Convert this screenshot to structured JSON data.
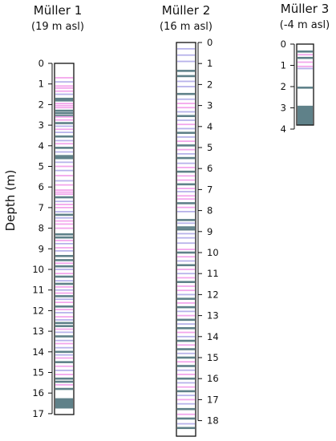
{
  "y_axis_label": "Depth (m)",
  "colors": {
    "dark": "#5f8189",
    "pink": "#f3a6ec",
    "blue": "#b7b2ea",
    "outline": "#111111"
  },
  "cores": [
    {
      "name": "Müller 1",
      "elevation": "(19 m asl)",
      "max_depth": 17,
      "tick_labels": [
        "0",
        "1",
        "2",
        "3",
        "4",
        "5",
        "6",
        "7",
        "8",
        "9",
        "10",
        "11",
        "12",
        "13",
        "14",
        "15",
        "16",
        "17"
      ],
      "layers": [
        {
          "d": 0.7,
          "t": "pink"
        },
        {
          "d": 0.9,
          "t": "blue"
        },
        {
          "d": 1.1,
          "t": "pink"
        },
        {
          "d": 1.2,
          "t": "pink"
        },
        {
          "d": 1.35,
          "t": "pink"
        },
        {
          "d": 1.5,
          "t": "blue"
        },
        {
          "d": 1.72,
          "t": "dark"
        },
        {
          "d": 1.8,
          "t": "dark"
        },
        {
          "d": 1.95,
          "t": "pink"
        },
        {
          "d": 2.05,
          "t": "pink"
        },
        {
          "d": 2.15,
          "t": "pink"
        },
        {
          "d": 2.3,
          "t": "dark"
        },
        {
          "d": 2.42,
          "t": "dark"
        },
        {
          "d": 2.55,
          "t": "dark"
        },
        {
          "d": 2.6,
          "t": "pink"
        },
        {
          "d": 2.75,
          "t": "pink"
        },
        {
          "d": 2.9,
          "t": "dark"
        },
        {
          "d": 3.05,
          "t": "blue"
        },
        {
          "d": 3.2,
          "t": "pink"
        },
        {
          "d": 3.35,
          "t": "blue"
        },
        {
          "d": 3.55,
          "t": "dark"
        },
        {
          "d": 3.75,
          "t": "blue"
        },
        {
          "d": 3.9,
          "t": "pink"
        },
        {
          "d": 4.1,
          "t": "dark"
        },
        {
          "d": 4.3,
          "t": "blue"
        },
        {
          "d": 4.5,
          "t": "dark"
        },
        {
          "d": 4.6,
          "t": "dark"
        },
        {
          "d": 4.8,
          "t": "blue"
        },
        {
          "d": 5.0,
          "t": "pink"
        },
        {
          "d": 5.2,
          "t": "blue"
        },
        {
          "d": 5.45,
          "t": "pink"
        },
        {
          "d": 5.7,
          "t": "blue"
        },
        {
          "d": 5.9,
          "t": "pink"
        },
        {
          "d": 6.15,
          "t": "pink"
        },
        {
          "d": 6.25,
          "t": "pink"
        },
        {
          "d": 6.35,
          "t": "pink"
        },
        {
          "d": 6.5,
          "t": "dark"
        },
        {
          "d": 6.7,
          "t": "blue"
        },
        {
          "d": 6.85,
          "t": "pink"
        },
        {
          "d": 7.0,
          "t": "pink"
        },
        {
          "d": 7.2,
          "t": "blue"
        },
        {
          "d": 7.35,
          "t": "dark"
        },
        {
          "d": 7.5,
          "t": "blue"
        },
        {
          "d": 7.65,
          "t": "pink"
        },
        {
          "d": 7.8,
          "t": "pink"
        },
        {
          "d": 8.0,
          "t": "pink"
        },
        {
          "d": 8.3,
          "t": "dark"
        },
        {
          "d": 8.45,
          "t": "dark"
        },
        {
          "d": 8.6,
          "t": "pink"
        },
        {
          "d": 8.75,
          "t": "blue"
        },
        {
          "d": 8.95,
          "t": "pink"
        },
        {
          "d": 9.1,
          "t": "blue"
        },
        {
          "d": 9.35,
          "t": "dark"
        },
        {
          "d": 9.55,
          "t": "dark"
        },
        {
          "d": 9.7,
          "t": "pink"
        },
        {
          "d": 9.85,
          "t": "dark"
        },
        {
          "d": 10.0,
          "t": "blue"
        },
        {
          "d": 10.2,
          "t": "pink"
        },
        {
          "d": 10.35,
          "t": "dark"
        },
        {
          "d": 10.55,
          "t": "blue"
        },
        {
          "d": 10.7,
          "t": "dark"
        },
        {
          "d": 10.85,
          "t": "pink"
        },
        {
          "d": 11.0,
          "t": "blue"
        },
        {
          "d": 11.15,
          "t": "pink"
        },
        {
          "d": 11.3,
          "t": "dark"
        },
        {
          "d": 11.45,
          "t": "blue"
        },
        {
          "d": 11.6,
          "t": "pink"
        },
        {
          "d": 11.8,
          "t": "dark"
        },
        {
          "d": 11.95,
          "t": "pink"
        },
        {
          "d": 12.1,
          "t": "blue"
        },
        {
          "d": 12.3,
          "t": "pink"
        },
        {
          "d": 12.45,
          "t": "blue"
        },
        {
          "d": 12.6,
          "t": "dark"
        },
        {
          "d": 12.75,
          "t": "dark"
        },
        {
          "d": 12.9,
          "t": "pink"
        },
        {
          "d": 13.05,
          "t": "blue"
        },
        {
          "d": 13.25,
          "t": "dark"
        },
        {
          "d": 13.45,
          "t": "blue"
        },
        {
          "d": 13.6,
          "t": "pink"
        },
        {
          "d": 13.8,
          "t": "blue"
        },
        {
          "d": 14.0,
          "t": "dark"
        },
        {
          "d": 14.15,
          "t": "blue"
        },
        {
          "d": 14.3,
          "t": "pink"
        },
        {
          "d": 14.5,
          "t": "dark"
        },
        {
          "d": 14.7,
          "t": "pink"
        },
        {
          "d": 14.9,
          "t": "blue"
        },
        {
          "d": 15.1,
          "t": "pink"
        },
        {
          "d": 15.3,
          "t": "dark"
        },
        {
          "d": 15.45,
          "t": "dark"
        },
        {
          "d": 15.6,
          "t": "pink"
        },
        {
          "d": 15.8,
          "t": "dark"
        }
      ],
      "blocks": [
        {
          "from": 16.25,
          "to": 16.75,
          "t": "dark"
        }
      ]
    },
    {
      "name": "Müller 2",
      "elevation": "(16 m asl)",
      "max_depth": 18.5,
      "tick_labels": [
        "0",
        "1",
        "2",
        "3",
        "4",
        "5",
        "6",
        "7",
        "8",
        "9",
        "10",
        "11",
        "12",
        "13",
        "14",
        "15",
        "16",
        "17",
        "18"
      ],
      "layers": [
        {
          "d": 0.3,
          "t": "blue"
        },
        {
          "d": 0.6,
          "t": "blue"
        },
        {
          "d": 0.9,
          "t": "blue"
        },
        {
          "d": 1.35,
          "t": "dark"
        },
        {
          "d": 1.6,
          "t": "dark"
        },
        {
          "d": 1.85,
          "t": "blue"
        },
        {
          "d": 2.1,
          "t": "blue"
        },
        {
          "d": 2.45,
          "t": "dark"
        },
        {
          "d": 2.7,
          "t": "blue"
        },
        {
          "d": 2.9,
          "t": "pink"
        },
        {
          "d": 3.1,
          "t": "pink"
        },
        {
          "d": 3.3,
          "t": "blue"
        },
        {
          "d": 3.5,
          "t": "dark"
        },
        {
          "d": 3.7,
          "t": "blue"
        },
        {
          "d": 3.9,
          "t": "pink"
        },
        {
          "d": 4.1,
          "t": "blue"
        },
        {
          "d": 4.3,
          "t": "dark"
        },
        {
          "d": 4.5,
          "t": "blue"
        },
        {
          "d": 4.7,
          "t": "pink"
        },
        {
          "d": 4.9,
          "t": "dark"
        },
        {
          "d": 5.1,
          "t": "pink"
        },
        {
          "d": 5.3,
          "t": "blue"
        },
        {
          "d": 5.5,
          "t": "dark"
        },
        {
          "d": 5.75,
          "t": "blue"
        },
        {
          "d": 5.95,
          "t": "pink"
        },
        {
          "d": 6.15,
          "t": "dark"
        },
        {
          "d": 6.35,
          "t": "pink"
        },
        {
          "d": 6.55,
          "t": "pink"
        },
        {
          "d": 6.75,
          "t": "dark"
        },
        {
          "d": 6.95,
          "t": "pink"
        },
        {
          "d": 7.1,
          "t": "blue"
        },
        {
          "d": 7.3,
          "t": "pink"
        },
        {
          "d": 7.45,
          "t": "pink"
        },
        {
          "d": 7.65,
          "t": "dark"
        },
        {
          "d": 7.85,
          "t": "pink"
        },
        {
          "d": 8.05,
          "t": "blue"
        },
        {
          "d": 8.45,
          "t": "dark"
        },
        {
          "d": 8.6,
          "t": "blue"
        },
        {
          "d": 8.8,
          "t": "dark"
        },
        {
          "d": 8.9,
          "t": "dark"
        },
        {
          "d": 9.1,
          "t": "blue"
        },
        {
          "d": 9.3,
          "t": "blue"
        },
        {
          "d": 9.55,
          "t": "blue"
        },
        {
          "d": 9.85,
          "t": "pink"
        },
        {
          "d": 10.0,
          "t": "dark"
        },
        {
          "d": 10.2,
          "t": "pink"
        },
        {
          "d": 10.4,
          "t": "blue"
        },
        {
          "d": 10.6,
          "t": "dark"
        },
        {
          "d": 10.8,
          "t": "pink"
        },
        {
          "d": 11.0,
          "t": "blue"
        },
        {
          "d": 11.2,
          "t": "pink"
        },
        {
          "d": 11.4,
          "t": "dark"
        },
        {
          "d": 11.6,
          "t": "pink"
        },
        {
          "d": 11.8,
          "t": "pink"
        },
        {
          "d": 12.0,
          "t": "blue"
        },
        {
          "d": 12.2,
          "t": "dark"
        },
        {
          "d": 12.4,
          "t": "pink"
        },
        {
          "d": 12.6,
          "t": "dark"
        },
        {
          "d": 12.8,
          "t": "blue"
        },
        {
          "d": 13.0,
          "t": "pink"
        },
        {
          "d": 13.2,
          "t": "dark"
        },
        {
          "d": 13.4,
          "t": "blue"
        },
        {
          "d": 13.6,
          "t": "dark"
        },
        {
          "d": 13.8,
          "t": "pink"
        },
        {
          "d": 14.0,
          "t": "blue"
        },
        {
          "d": 14.2,
          "t": "dark"
        },
        {
          "d": 14.4,
          "t": "pink"
        },
        {
          "d": 14.6,
          "t": "dark"
        },
        {
          "d": 14.8,
          "t": "blue"
        },
        {
          "d": 15.0,
          "t": "dark"
        },
        {
          "d": 15.2,
          "t": "pink"
        },
        {
          "d": 15.4,
          "t": "dark"
        },
        {
          "d": 15.6,
          "t": "blue"
        },
        {
          "d": 15.8,
          "t": "pink"
        },
        {
          "d": 16.0,
          "t": "dark"
        },
        {
          "d": 16.2,
          "t": "blue"
        },
        {
          "d": 16.4,
          "t": "pink"
        },
        {
          "d": 16.6,
          "t": "dark"
        },
        {
          "d": 16.8,
          "t": "blue"
        },
        {
          "d": 17.0,
          "t": "pink"
        },
        {
          "d": 17.2,
          "t": "blue"
        },
        {
          "d": 17.45,
          "t": "dark"
        },
        {
          "d": 17.7,
          "t": "pink"
        },
        {
          "d": 17.9,
          "t": "dark"
        },
        {
          "d": 18.15,
          "t": "blue"
        },
        {
          "d": 18.35,
          "t": "dark"
        }
      ],
      "blocks": []
    },
    {
      "name": "Müller 3",
      "elevation": "(-4 m asl)",
      "max_depth": 3.8,
      "tick_labels": [
        "0",
        "1",
        "2",
        "3",
        "4"
      ],
      "layers": [
        {
          "d": 0.35,
          "t": "dark"
        },
        {
          "d": 0.5,
          "t": "pink"
        },
        {
          "d": 0.65,
          "t": "dark"
        },
        {
          "d": 0.85,
          "t": "pink"
        },
        {
          "d": 1.05,
          "t": "pink"
        },
        {
          "d": 1.15,
          "t": "blue"
        },
        {
          "d": 2.05,
          "t": "dark"
        }
      ],
      "blocks": [
        {
          "from": 2.9,
          "to": 3.8,
          "t": "dark"
        }
      ]
    }
  ]
}
